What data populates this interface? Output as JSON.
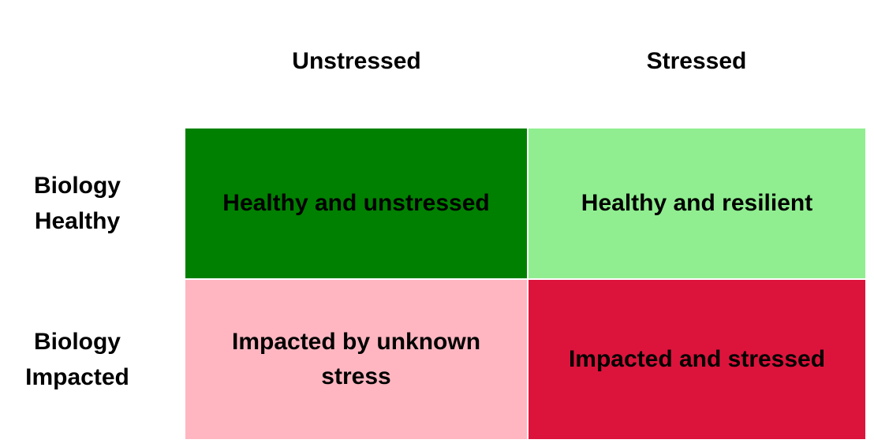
{
  "columns": [
    "Unstressed",
    "Stressed"
  ],
  "rows": [
    "Biology\nHealthy",
    "Biology\nImpacted"
  ],
  "cells": [
    [
      {
        "label": "Healthy and unstressed",
        "color": "#008000"
      },
      {
        "label": "Healthy and resilient",
        "color": "#90EE90"
      }
    ],
    [
      {
        "label": "Impacted by unknown\nstress",
        "color": "#FFB6C1"
      },
      {
        "label": "Impacted and stressed",
        "color": "#DC143C"
      }
    ]
  ]
}
